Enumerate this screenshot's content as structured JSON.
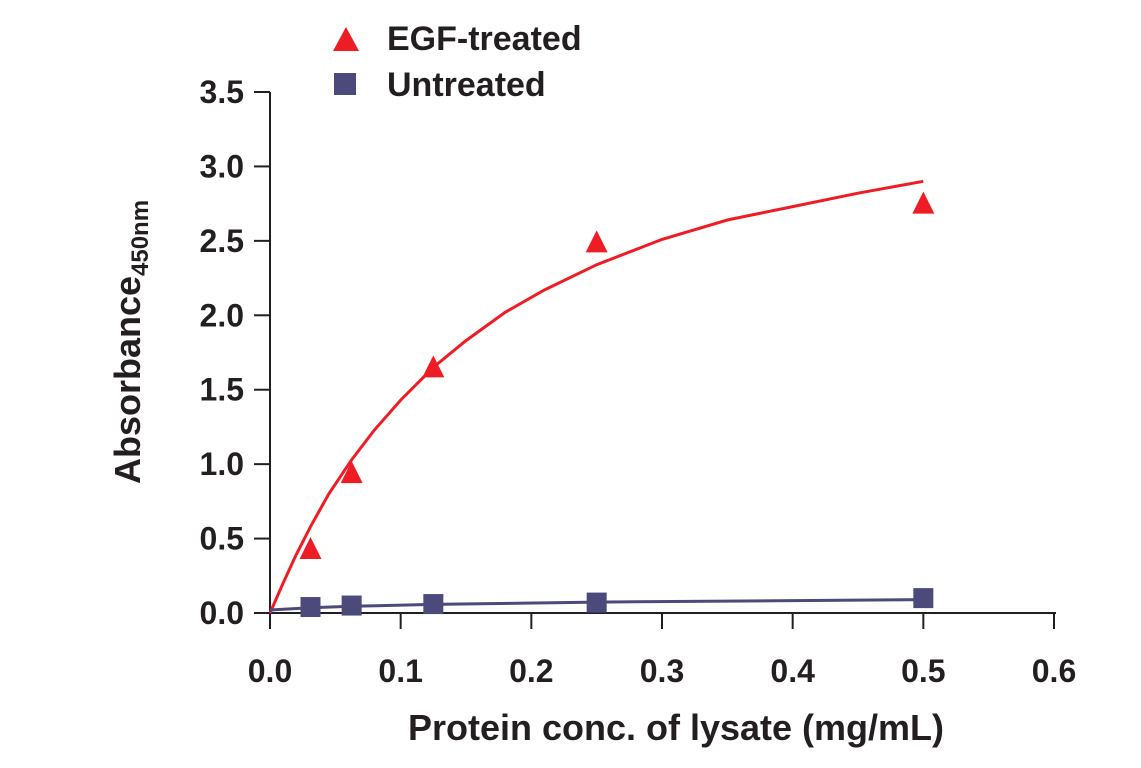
{
  "chart_data": {
    "type": "scatter",
    "title": "",
    "xlabel": "Protein conc. of lysate (mg/mL)",
    "ylabel": "Absorbance",
    "ylabel_subscript": "450nm",
    "xlim": [
      0,
      0.6
    ],
    "ylim": [
      0,
      3.5
    ],
    "x_ticks": [
      "0.0",
      "0.1",
      "0.2",
      "0.3",
      "0.4",
      "0.5",
      "0.6"
    ],
    "y_ticks": [
      "0.0",
      "0.5",
      "1.0",
      "1.5",
      "2.0",
      "2.5",
      "3.0",
      "3.5"
    ],
    "grid": false,
    "legend_position": "top-left",
    "series": [
      {
        "name": "EGF-treated",
        "marker": "triangle-icon",
        "color": "#ee1c25",
        "x": [
          0.031,
          0.0625,
          0.125,
          0.25,
          0.5
        ],
        "y": [
          0.43,
          0.94,
          1.65,
          2.49,
          2.75
        ],
        "fit": {
          "x": [
            0,
            0.01,
            0.02,
            0.031,
            0.045,
            0.0625,
            0.08,
            0.1,
            0.125,
            0.15,
            0.18,
            0.21,
            0.25,
            0.3,
            0.35,
            0.4,
            0.45,
            0.5
          ],
          "y": [
            0,
            0.2,
            0.39,
            0.58,
            0.8,
            1.03,
            1.23,
            1.43,
            1.65,
            1.83,
            2.02,
            2.17,
            2.34,
            2.51,
            2.64,
            2.73,
            2.82,
            2.9
          ]
        }
      },
      {
        "name": "Untreated",
        "marker": "square-icon",
        "color": "#4c4a7a",
        "x": [
          0.031,
          0.0625,
          0.125,
          0.25,
          0.5
        ],
        "y": [
          0.04,
          0.05,
          0.06,
          0.07,
          0.1
        ],
        "fit": {
          "x": [
            0,
            0.031,
            0.0625,
            0.125,
            0.25,
            0.5
          ],
          "y": [
            0.02,
            0.035,
            0.045,
            0.058,
            0.073,
            0.09
          ]
        }
      }
    ]
  }
}
